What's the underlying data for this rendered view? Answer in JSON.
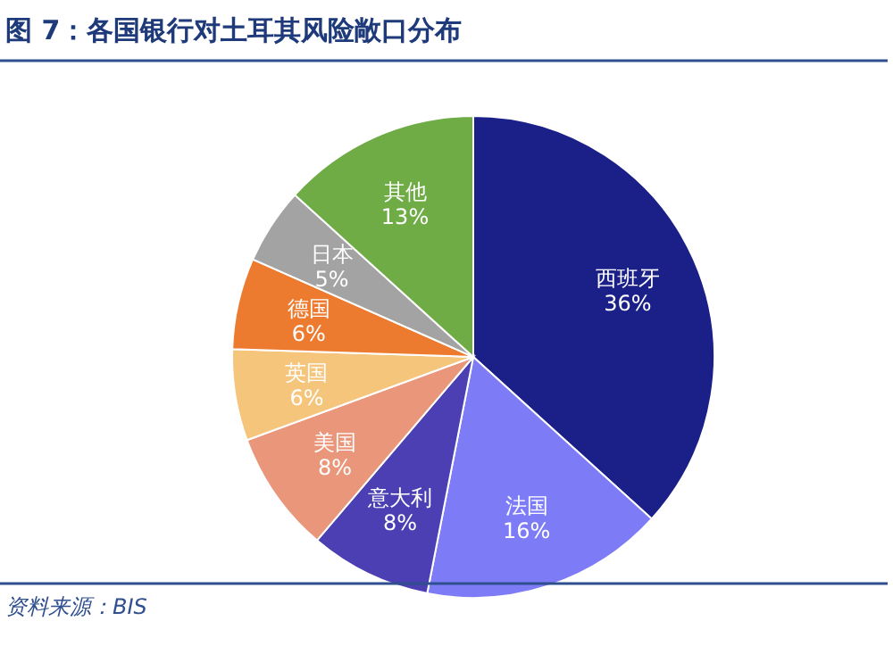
{
  "chart_data": {
    "type": "pie",
    "title": "图 7：各国银行对土耳其风险敞口分布",
    "categories": [
      "西班牙",
      "法国",
      "意大利",
      "美国",
      "英国",
      "德国",
      "日本",
      "其他"
    ],
    "values": [
      36,
      16,
      8,
      8,
      6,
      6,
      5,
      13
    ],
    "colors": [
      "#1b2089",
      "#7d7cf6",
      "#4b3fb3",
      "#e9967b",
      "#f6c57c",
      "#ec7b2f",
      "#a3a3a3",
      "#6fac46"
    ],
    "value_labels": [
      "36%",
      "16%",
      "8%",
      "8%",
      "6%",
      "6%",
      "5%",
      "13%"
    ],
    "annotations": [
      "资料来源：BIS"
    ]
  }
}
